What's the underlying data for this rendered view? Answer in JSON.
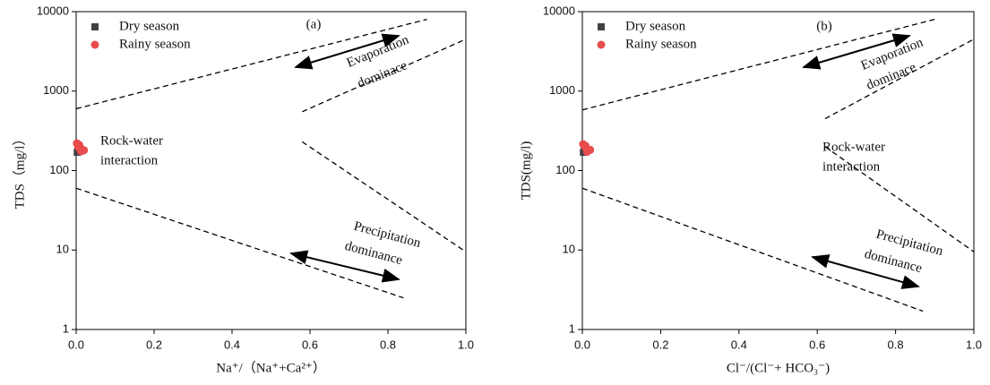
{
  "chart_data": [
    {
      "type": "scatter",
      "panel_label": "(a)",
      "x_label": "Na⁺/（Na⁺+Ca²⁺）",
      "y_label": "TDS（mg/l）",
      "xlim": [
        0,
        1
      ],
      "ylim": [
        1,
        10000
      ],
      "log_y": true,
      "xticks": [
        {
          "value": 0,
          "label": "0.0"
        },
        0.2,
        0.4,
        0.6,
        0.8,
        {
          "value": 1,
          "label": "1.0"
        }
      ],
      "yticks": [
        1,
        10,
        100,
        1000,
        10000
      ],
      "series": [
        {
          "name": "Dry season",
          "color": "#404040",
          "marker": "square",
          "x": [
            0.003,
            0.005,
            0.008,
            0.01
          ],
          "values": [
            170,
            180,
            190,
            175
          ]
        },
        {
          "name": "Rainy season",
          "color": "#e84c4c",
          "marker": "circle",
          "x": [
            0.002,
            0.005,
            0.01,
            0.015,
            0.02,
            0.008,
            0.012
          ],
          "values": [
            220,
            200,
            190,
            185,
            180,
            210,
            175
          ]
        }
      ],
      "lines": [
        {
          "x": [
            0,
            0.9
          ],
          "values": [
            600,
            8000
          ]
        },
        {
          "x": [
            0.58,
            1.0
          ],
          "values": [
            550,
            4500
          ]
        },
        {
          "x": [
            0.58,
            1.0
          ],
          "values": [
            230,
            9.5
          ]
        },
        {
          "x": [
            0,
            0.84
          ],
          "values": [
            60,
            2.5
          ]
        }
      ],
      "annotations": [
        [
          "Rock-water",
          "interaction"
        ],
        [
          "Evaporation",
          "dominace"
        ],
        [
          "Precipitation",
          "dominance"
        ]
      ]
    },
    {
      "type": "scatter",
      "panel_label": "(b)",
      "x_label": "Cl⁻/(Cl⁻+ HCO₃⁻)",
      "y_label": "TDS(mg/l)",
      "xlim": [
        0,
        1
      ],
      "ylim": [
        1,
        10000
      ],
      "log_y": true,
      "xticks": [
        {
          "value": 0,
          "label": "0.0"
        },
        0.2,
        0.4,
        0.6,
        0.8,
        {
          "value": 1,
          "label": "1.0"
        }
      ],
      "yticks": [
        1,
        10,
        100,
        1000,
        10000
      ],
      "series": [
        {
          "name": "Dry season",
          "color": "#404040",
          "marker": "square",
          "x": [
            0.003,
            0.005,
            0.008,
            0.01
          ],
          "values": [
            170,
            185,
            195,
            178
          ]
        },
        {
          "name": "Rainy season",
          "color": "#e84c4c",
          "marker": "circle",
          "x": [
            0.002,
            0.006,
            0.01,
            0.014,
            0.02,
            0.008,
            0.012
          ],
          "values": [
            215,
            200,
            192,
            185,
            182,
            205,
            172
          ]
        }
      ],
      "lines": [
        {
          "x": [
            0,
            0.9
          ],
          "values": [
            580,
            8000
          ]
        },
        {
          "x": [
            0.62,
            1.0
          ],
          "values": [
            450,
            4500
          ]
        },
        {
          "x": [
            0.62,
            1.0
          ],
          "values": [
            200,
            9.5
          ]
        },
        {
          "x": [
            0,
            0.87
          ],
          "values": [
            60,
            1.7
          ]
        }
      ],
      "annotations": [
        [
          "Rock-water",
          "interaction"
        ],
        [
          "Evaporation",
          "dominace"
        ],
        [
          "Precipitation",
          "dominance"
        ]
      ]
    }
  ]
}
